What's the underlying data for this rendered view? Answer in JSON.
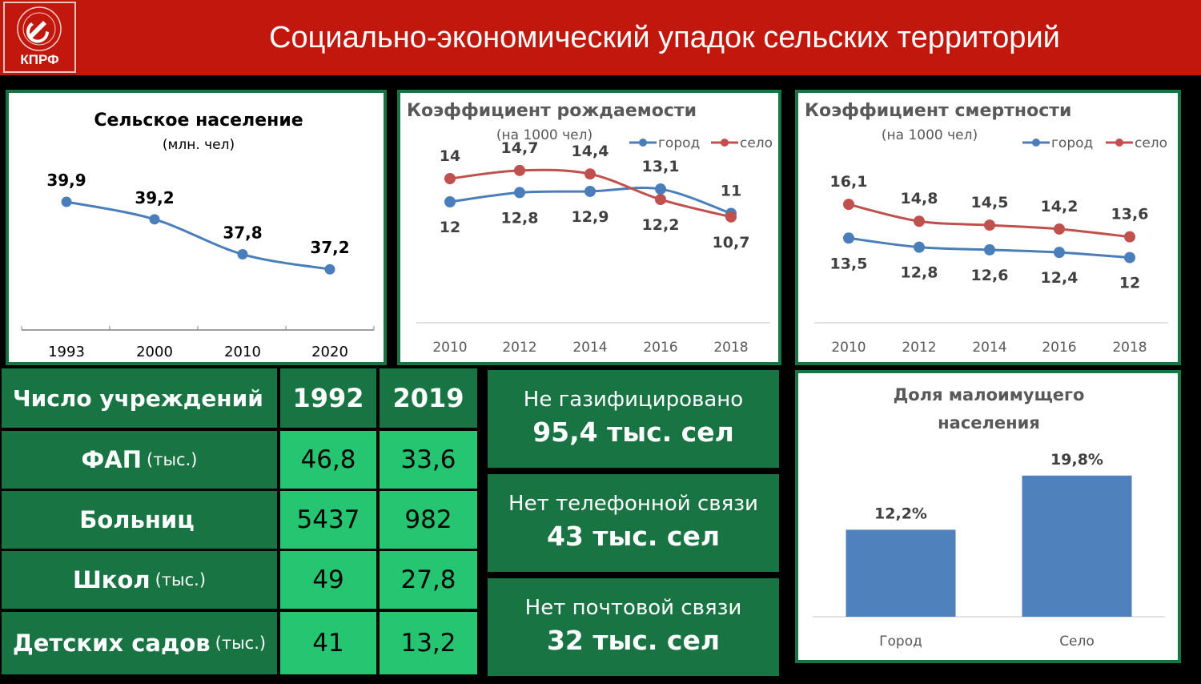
{
  "header": {
    "logo_text": "КПРФ",
    "title": "Социально-экономический упадок сельских территорий"
  },
  "colors": {
    "header_red": "#c1170c",
    "green_dark": "#197443",
    "green_light": "#26c571",
    "series_blue": "#4a7ebb",
    "series_red": "#c0504d",
    "bar": "#4f81bd"
  },
  "chart_data": [
    {
      "type": "line",
      "title": "Сельское население",
      "subtitle": "(млн. чел)",
      "categories": [
        "1993",
        "2000",
        "2010",
        "2020"
      ],
      "series": [
        {
          "values": [
            39.9,
            39.2,
            37.8,
            37.2
          ]
        }
      ],
      "labels": [
        "39,9",
        "39,2",
        "37,8",
        "37,2"
      ]
    },
    {
      "type": "line",
      "title": "Коэффициент рождаемости",
      "subtitle": "(на 1000 чел)",
      "categories": [
        "2010",
        "2012",
        "2014",
        "2016",
        "2018"
      ],
      "series": [
        {
          "name": "город",
          "values": [
            12,
            12.8,
            12.9,
            13.1,
            11
          ],
          "labels": [
            "12",
            "12,8",
            "12,9",
            "13,1",
            "11"
          ]
        },
        {
          "name": "село",
          "values": [
            14,
            14.7,
            14.4,
            12.2,
            10.7
          ],
          "labels": [
            "14",
            "14,7",
            "14,4",
            "12,2",
            "10,7"
          ]
        }
      ],
      "legend": "top-right"
    },
    {
      "type": "line",
      "title": "Коэффициент смертности",
      "subtitle": "(на 1000 чел)",
      "categories": [
        "2010",
        "2012",
        "2014",
        "2016",
        "2018"
      ],
      "series": [
        {
          "name": "город",
          "values": [
            13.5,
            12.8,
            12.6,
            12.4,
            12
          ],
          "labels": [
            "13,5",
            "12,8",
            "12,6",
            "12,4",
            "12"
          ]
        },
        {
          "name": "село",
          "values": [
            16.1,
            14.8,
            14.5,
            14.2,
            13.6
          ],
          "labels": [
            "16,1",
            "14,8",
            "14,5",
            "14,2",
            "13,6"
          ]
        }
      ],
      "legend": "top-right"
    },
    {
      "type": "bar",
      "title": "Доля малоимущего населения",
      "categories": [
        "Город",
        "Село"
      ],
      "values": [
        12.2,
        19.8
      ],
      "labels": [
        "12,2%",
        "19,8%"
      ],
      "ylim": [
        0,
        22
      ]
    },
    {
      "type": "table",
      "header": [
        "Число учреждений",
        "1992",
        "2019"
      ],
      "rows": [
        {
          "name": "ФАП",
          "unit": "(тыс.)",
          "v1992": "46,8",
          "v2019": "33,6"
        },
        {
          "name": "Больниц",
          "unit": "",
          "v1992": "5437",
          "v2019": "982"
        },
        {
          "name": "Школ",
          "unit": "(тыс.)",
          "v1992": "49",
          "v2019": "27,8"
        },
        {
          "name": "Детских садов",
          "unit": "(тыс.)",
          "v1992": "41",
          "v2019": "13,2"
        }
      ]
    }
  ],
  "info_boxes": [
    {
      "line1": "Не газифицировано",
      "line2": "95,4 тыс. сел"
    },
    {
      "line1": "Нет телефонной связи",
      "line2": "43 тыс. сел"
    },
    {
      "line1": "Нет почтовой связи",
      "line2": "32 тыс. сел"
    }
  ]
}
